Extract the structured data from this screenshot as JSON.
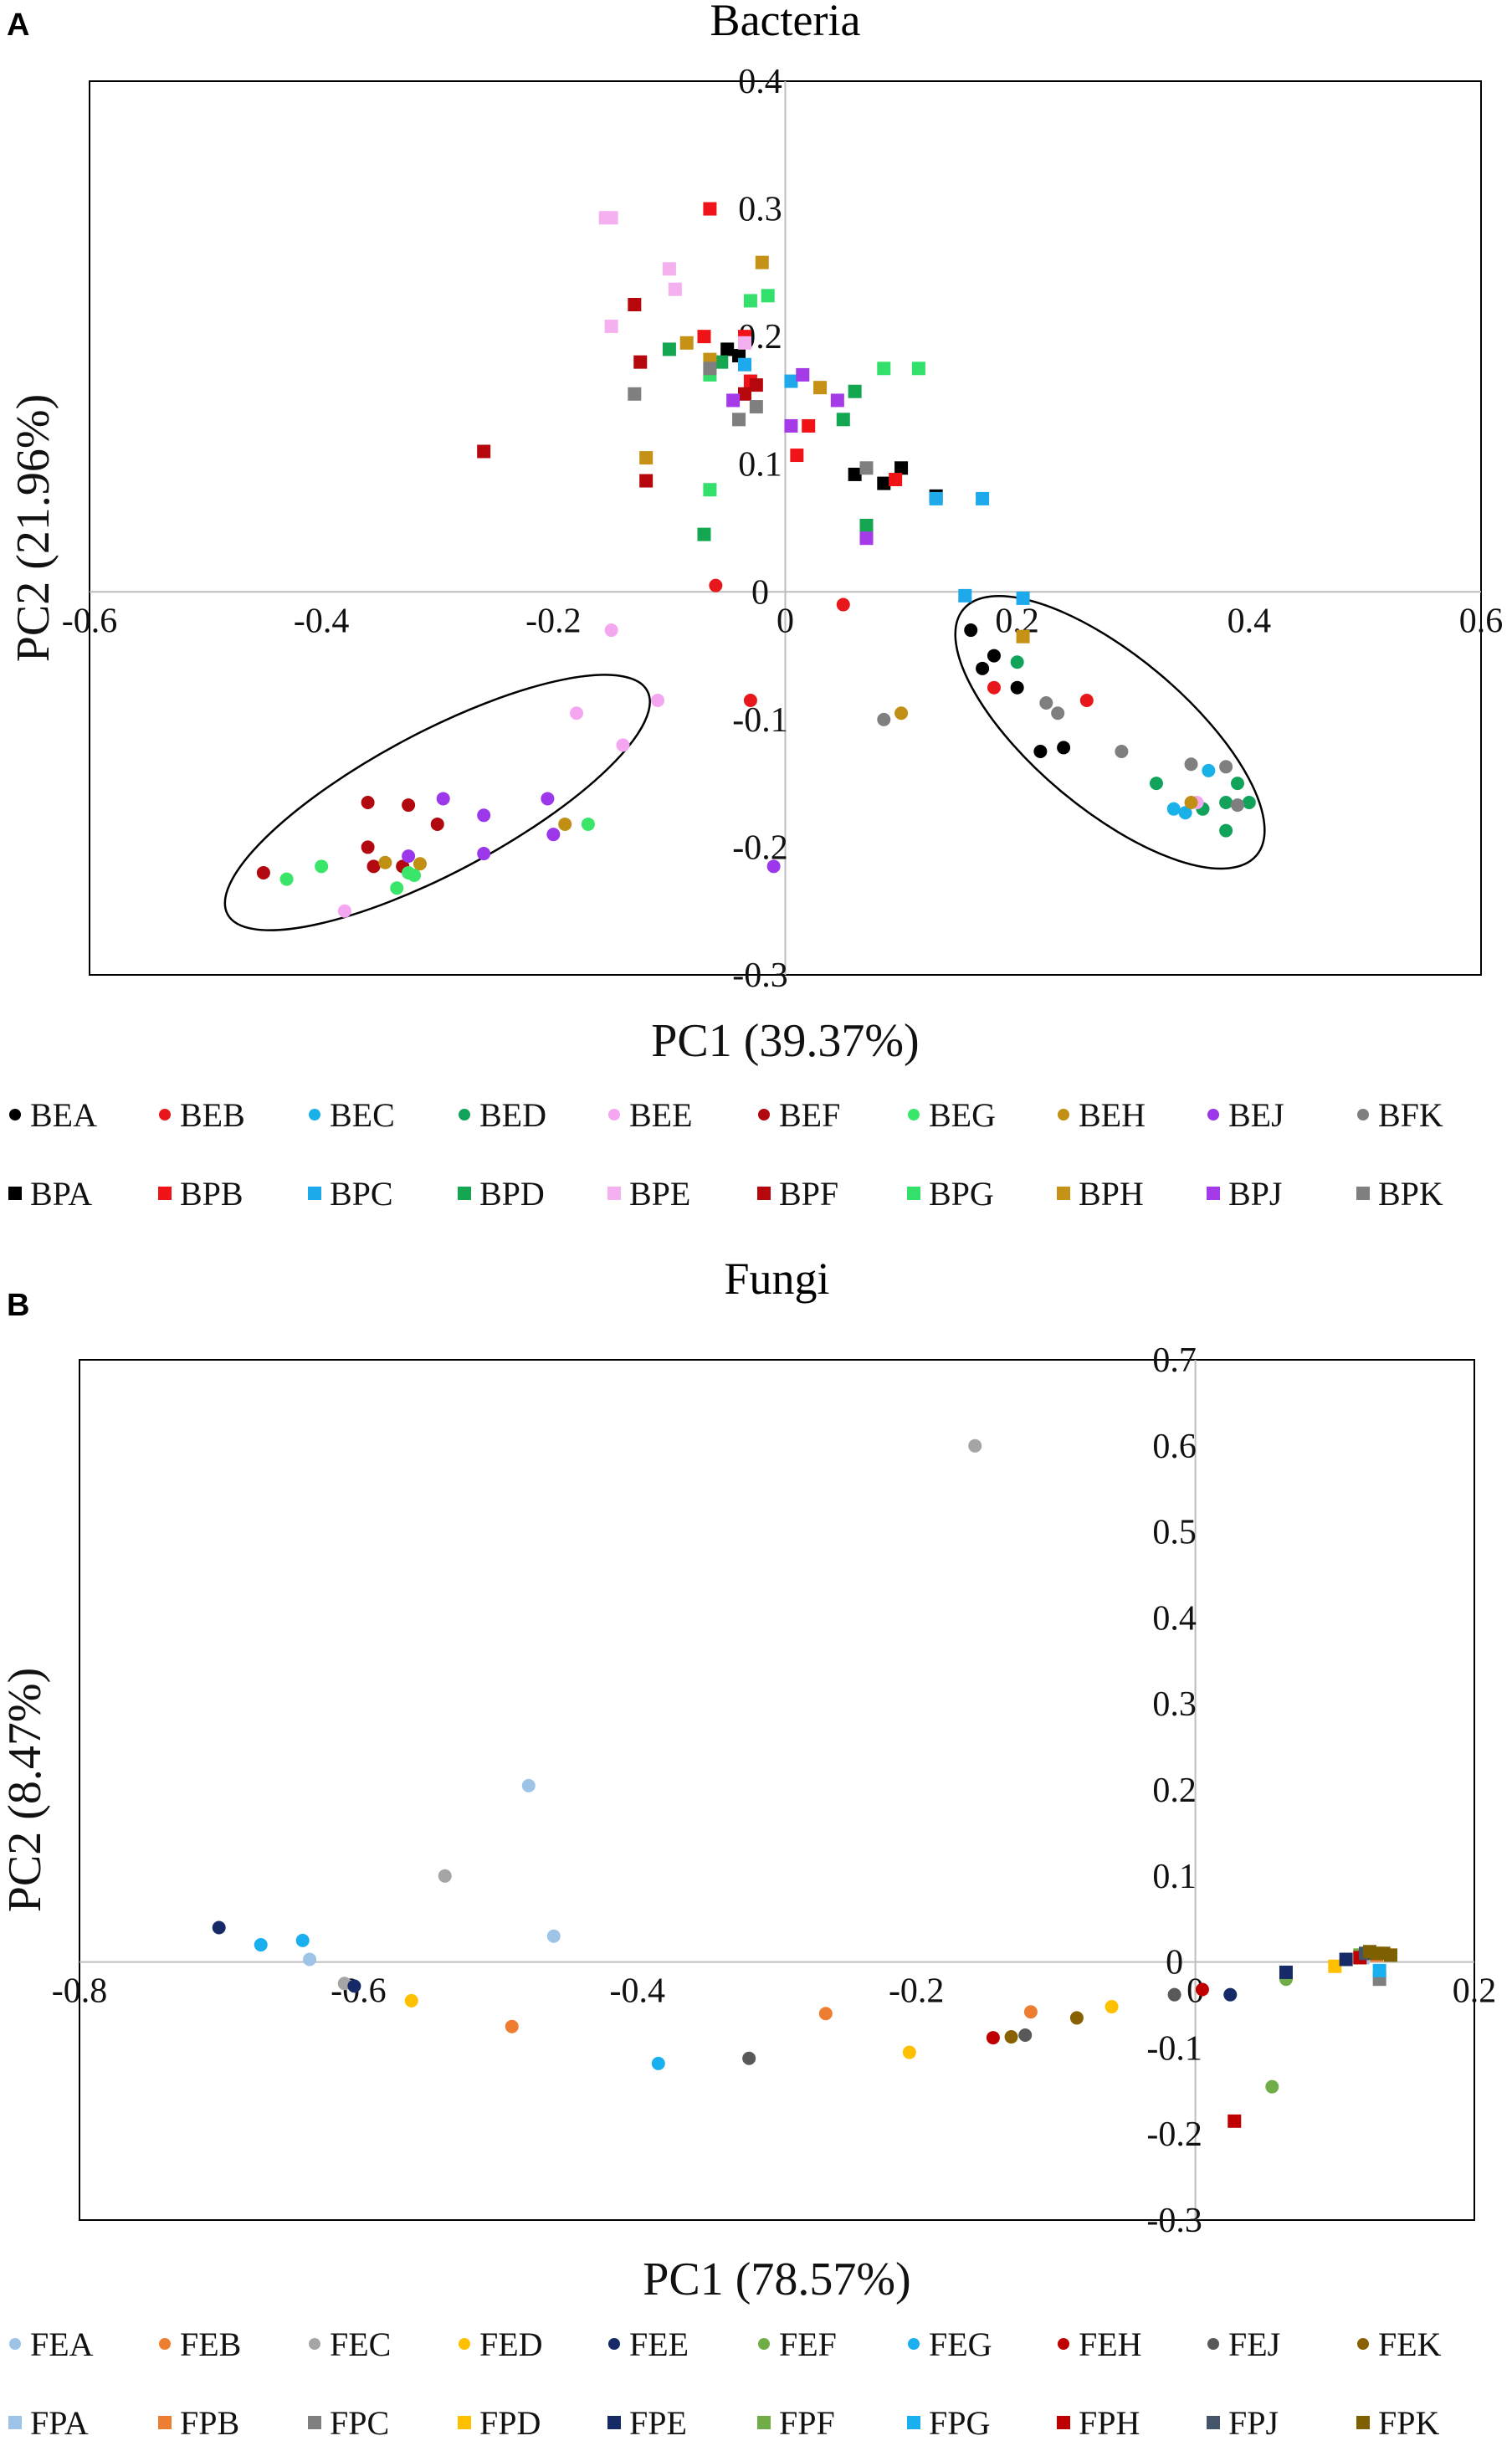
{
  "figure": {
    "panels": [
      "A",
      "B"
    ]
  },
  "chart_data": [
    {
      "id": "A",
      "type": "scatter",
      "title": "Bacteria",
      "xlabel": "PC1 (39.37%)",
      "ylabel": "PC2 (21.96%)",
      "xlim": [
        -0.6,
        0.6
      ],
      "ylim": [
        -0.3,
        0.4
      ],
      "xticks": [
        -0.6,
        -0.4,
        -0.2,
        0,
        0.2,
        0.4,
        0.6
      ],
      "yticks": [
        -0.3,
        -0.2,
        -0.1,
        0,
        0.1,
        0.2,
        0.3,
        0.4
      ],
      "tick_labels_x": [
        "-0.6",
        "-0.4",
        "-0.2",
        "0",
        "0.2",
        "0.4",
        "0.6"
      ],
      "tick_labels_y": [
        "-0.3",
        "-0.2",
        "-0.1",
        "0",
        "0.1",
        "0.2",
        "0.3",
        "0.4"
      ],
      "legend_position": "bottom",
      "ellipses": [
        {
          "cx": -0.3,
          "cy": -0.165,
          "rx": 0.205,
          "ry": 0.055,
          "angle_deg": -28
        },
        {
          "cx": 0.28,
          "cy": -0.11,
          "rx": 0.165,
          "ry": 0.06,
          "angle_deg": 40
        }
      ],
      "series": [
        {
          "name": "BEA",
          "marker": "circle",
          "color": "#000000",
          "points": [
            [
              0.16,
              -0.03
            ],
            [
              0.18,
              -0.05
            ],
            [
              0.17,
              -0.06
            ],
            [
              0.2,
              -0.075
            ],
            [
              0.22,
              -0.125
            ],
            [
              0.24,
              -0.122
            ]
          ]
        },
        {
          "name": "BEB",
          "marker": "circle",
          "color": "#e8171b",
          "points": [
            [
              0.18,
              -0.075
            ],
            [
              0.26,
              -0.085
            ],
            [
              -0.06,
              0.005
            ],
            [
              0.05,
              -0.01
            ],
            [
              -0.03,
              -0.085
            ]
          ]
        },
        {
          "name": "BEC",
          "marker": "circle",
          "color": "#1ab0e8",
          "points": [
            [
              0.365,
              -0.14
            ],
            [
              0.335,
              -0.17
            ],
            [
              0.345,
              -0.173
            ],
            [
              0.36,
              -0.17
            ]
          ]
        },
        {
          "name": "BED",
          "marker": "circle",
          "color": "#11a35a",
          "points": [
            [
              0.2,
              -0.055
            ],
            [
              0.32,
              -0.15
            ],
            [
              0.36,
              -0.17
            ],
            [
              0.38,
              -0.187
            ],
            [
              0.38,
              -0.165
            ],
            [
              0.39,
              -0.15
            ],
            [
              0.4,
              -0.165
            ]
          ]
        },
        {
          "name": "BEE",
          "marker": "circle",
          "color": "#f4a7f0",
          "points": [
            [
              -0.15,
              -0.03
            ],
            [
              -0.18,
              -0.095
            ],
            [
              -0.14,
              -0.12
            ],
            [
              -0.11,
              -0.085
            ],
            [
              -0.38,
              -0.25
            ],
            [
              0.355,
              -0.165
            ]
          ]
        },
        {
          "name": "BEF",
          "marker": "circle",
          "color": "#b2080f",
          "points": [
            [
              -0.45,
              -0.22
            ],
            [
              -0.36,
              -0.165
            ],
            [
              -0.36,
              -0.2
            ],
            [
              -0.355,
              -0.215
            ],
            [
              -0.325,
              -0.167
            ],
            [
              -0.3,
              -0.182
            ],
            [
              -0.33,
              -0.215
            ]
          ]
        },
        {
          "name": "BEG",
          "marker": "circle",
          "color": "#39e66a",
          "points": [
            [
              -0.43,
              -0.225
            ],
            [
              -0.4,
              -0.215
            ],
            [
              -0.335,
              -0.232
            ],
            [
              -0.325,
              -0.22
            ],
            [
              -0.32,
              -0.222
            ],
            [
              -0.17,
              -0.182
            ]
          ]
        },
        {
          "name": "BEH",
          "marker": "circle",
          "color": "#c08f13",
          "points": [
            [
              -0.345,
              -0.212
            ],
            [
              -0.315,
              -0.213
            ],
            [
              -0.19,
              -0.182
            ],
            [
              0.1,
              -0.095
            ],
            [
              0.35,
              -0.165
            ]
          ]
        },
        {
          "name": "BEJ",
          "marker": "circle",
          "color": "#9c37ea",
          "points": [
            [
              -0.295,
              -0.162
            ],
            [
              -0.26,
              -0.175
            ],
            [
              -0.26,
              -0.205
            ],
            [
              -0.325,
              -0.207
            ],
            [
              -0.205,
              -0.162
            ],
            [
              -0.2,
              -0.19
            ],
            [
              -0.01,
              -0.215
            ]
          ]
        },
        {
          "name": "BFK",
          "marker": "circle",
          "color": "#7f7f7f",
          "points": [
            [
              0.085,
              -0.1
            ],
            [
              0.225,
              -0.087
            ],
            [
              0.235,
              -0.095
            ],
            [
              0.29,
              -0.125
            ],
            [
              0.35,
              -0.135
            ],
            [
              0.38,
              -0.137
            ],
            [
              0.39,
              -0.167
            ]
          ]
        },
        {
          "name": "BPA",
          "marker": "square",
          "color": "#000000",
          "points": [
            [
              -0.05,
              0.19
            ],
            [
              -0.04,
              0.185
            ],
            [
              0.06,
              0.092
            ],
            [
              0.085,
              0.085
            ],
            [
              0.1,
              0.097
            ],
            [
              0.13,
              0.075
            ]
          ]
        },
        {
          "name": "BPB",
          "marker": "square",
          "color": "#f01418",
          "points": [
            [
              -0.065,
              0.3
            ],
            [
              -0.07,
              0.2
            ],
            [
              -0.035,
              0.2
            ],
            [
              -0.03,
              0.165
            ],
            [
              0.02,
              0.13
            ],
            [
              0.01,
              0.107
            ],
            [
              0.095,
              0.088
            ]
          ]
        },
        {
          "name": "BPC",
          "marker": "square",
          "color": "#1da9ec",
          "points": [
            [
              -0.035,
              0.178
            ],
            [
              0.005,
              0.165
            ],
            [
              0.13,
              0.073
            ],
            [
              0.17,
              0.073
            ],
            [
              0.155,
              -0.003
            ],
            [
              0.205,
              -0.005
            ]
          ]
        },
        {
          "name": "BPD",
          "marker": "square",
          "color": "#14a650",
          "points": [
            [
              -0.1,
              0.19
            ],
            [
              -0.07,
              0.045
            ],
            [
              -0.055,
              0.18
            ],
            [
              0.05,
              0.135
            ],
            [
              0.06,
              0.157
            ],
            [
              0.07,
              0.052
            ]
          ]
        },
        {
          "name": "BPE",
          "marker": "square",
          "color": "#f5b0f0",
          "points": [
            [
              -0.155,
              0.293
            ],
            [
              -0.15,
              0.293
            ],
            [
              -0.1,
              0.253
            ],
            [
              -0.095,
              0.237
            ],
            [
              -0.15,
              0.208
            ],
            [
              -0.035,
              0.195
            ]
          ]
        },
        {
          "name": "BPF",
          "marker": "square",
          "color": "#b5070c",
          "points": [
            [
              -0.26,
              0.11
            ],
            [
              -0.13,
              0.225
            ],
            [
              -0.125,
              0.18
            ],
            [
              -0.12,
              0.087
            ],
            [
              -0.035,
              0.155
            ],
            [
              -0.025,
              0.162
            ]
          ]
        },
        {
          "name": "BPG",
          "marker": "square",
          "color": "#33e06c",
          "points": [
            [
              -0.065,
              0.08
            ],
            [
              -0.03,
              0.228
            ],
            [
              -0.015,
              0.232
            ],
            [
              -0.065,
              0.17
            ],
            [
              0.085,
              0.175
            ],
            [
              0.115,
              0.175
            ]
          ]
        },
        {
          "name": "BPH",
          "marker": "square",
          "color": "#c59216",
          "points": [
            [
              -0.12,
              0.105
            ],
            [
              -0.085,
              0.195
            ],
            [
              -0.065,
              0.182
            ],
            [
              -0.02,
              0.258
            ],
            [
              0.03,
              0.16
            ],
            [
              0.205,
              -0.035
            ]
          ]
        },
        {
          "name": "BPJ",
          "marker": "square",
          "color": "#a43ae8",
          "points": [
            [
              -0.045,
              0.15
            ],
            [
              0.005,
              0.13
            ],
            [
              0.015,
              0.17
            ],
            [
              0.045,
              0.15
            ],
            [
              0.07,
              0.042
            ]
          ]
        },
        {
          "name": "BPK",
          "marker": "square",
          "color": "#7f7f7f",
          "points": [
            [
              -0.13,
              0.155
            ],
            [
              -0.065,
              0.175
            ],
            [
              -0.04,
              0.135
            ],
            [
              -0.025,
              0.145
            ],
            [
              0.07,
              0.097
            ]
          ]
        }
      ]
    },
    {
      "id": "B",
      "type": "scatter",
      "title": "Fungi",
      "xlabel": "PC1 (78.57%)",
      "ylabel": "PC2 (8.47%)",
      "xlim": [
        -0.8,
        0.2
      ],
      "ylim": [
        -0.3,
        0.7
      ],
      "xticks": [
        -0.8,
        -0.6,
        -0.4,
        -0.2,
        0,
        0.2
      ],
      "yticks": [
        -0.3,
        -0.2,
        -0.1,
        0,
        0.1,
        0.2,
        0.3,
        0.4,
        0.5,
        0.6,
        0.7
      ],
      "tick_labels_x": [
        "-0.8",
        "-0.6",
        "-0.4",
        "-0.2",
        "0",
        "0.2"
      ],
      "tick_labels_y": [
        "-0.3",
        "-0.2",
        "-0.1",
        "0",
        "0.1",
        "0.2",
        "0.3",
        "0.4",
        "0.5",
        "0.6",
        "0.7"
      ],
      "legend_position": "bottom",
      "series": [
        {
          "name": "FEA",
          "marker": "circle",
          "color": "#9dc3e6",
          "points": [
            [
              -0.478,
              0.205
            ],
            [
              -0.46,
              0.03
            ],
            [
              -0.635,
              0.003
            ]
          ]
        },
        {
          "name": "FEB",
          "marker": "circle",
          "color": "#ed7d31",
          "points": [
            [
              -0.49,
              -0.075
            ],
            [
              -0.265,
              -0.06
            ],
            [
              -0.118,
              -0.058
            ]
          ]
        },
        {
          "name": "FEC",
          "marker": "circle",
          "color": "#a5a5a5",
          "points": [
            [
              -0.158,
              0.6
            ],
            [
              -0.538,
              0.1
            ],
            [
              -0.61,
              -0.025
            ]
          ]
        },
        {
          "name": "FED",
          "marker": "circle",
          "color": "#ffc000",
          "points": [
            [
              -0.562,
              -0.045
            ],
            [
              -0.205,
              -0.105
            ],
            [
              -0.06,
              -0.052
            ]
          ]
        },
        {
          "name": "FEE",
          "marker": "circle",
          "color": "#152a66",
          "points": [
            [
              -0.7,
              0.04
            ],
            [
              -0.603,
              -0.028
            ],
            [
              0.025,
              -0.038
            ]
          ]
        },
        {
          "name": "FEF",
          "marker": "circle",
          "color": "#70ad47",
          "points": [
            [
              0.055,
              -0.145
            ],
            [
              0.065,
              -0.02
            ]
          ]
        },
        {
          "name": "FEG",
          "marker": "circle",
          "color": "#1ab0ef",
          "points": [
            [
              -0.67,
              0.02
            ],
            [
              -0.64,
              0.025
            ],
            [
              -0.385,
              -0.118
            ]
          ]
        },
        {
          "name": "FEH",
          "marker": "circle",
          "color": "#c00000",
          "points": [
            [
              -0.145,
              -0.088
            ],
            [
              0.005,
              -0.032
            ]
          ]
        },
        {
          "name": "FEJ",
          "marker": "circle",
          "color": "#595959",
          "points": [
            [
              -0.32,
              -0.112
            ],
            [
              -0.122,
              -0.085
            ],
            [
              -0.015,
              -0.038
            ]
          ]
        },
        {
          "name": "FEK",
          "marker": "circle",
          "color": "#8a6100",
          "points": [
            [
              -0.132,
              -0.087
            ],
            [
              -0.085,
              -0.065
            ]
          ]
        },
        {
          "name": "FPA",
          "marker": "square",
          "color": "#9dc3e6",
          "points": [
            [
              0.12,
              0.005
            ]
          ]
        },
        {
          "name": "FPB",
          "marker": "square",
          "color": "#ed7d31",
          "points": [
            [
              0.13,
              0.008
            ]
          ]
        },
        {
          "name": "FPC",
          "marker": "square",
          "color": "#7f7f7f",
          "points": [
            [
              0.132,
              -0.02
            ]
          ]
        },
        {
          "name": "FPD",
          "marker": "square",
          "color": "#ffc000",
          "points": [
            [
              0.1,
              -0.005
            ]
          ]
        },
        {
          "name": "FPE",
          "marker": "square",
          "color": "#152a66",
          "points": [
            [
              0.065,
              -0.012
            ],
            [
              0.108,
              0.003
            ]
          ]
        },
        {
          "name": "FPF",
          "marker": "square",
          "color": "#70ad47",
          "points": [
            [
              0.118,
              0.008
            ]
          ]
        },
        {
          "name": "FPG",
          "marker": "square",
          "color": "#1ab0ef",
          "points": [
            [
              0.132,
              -0.01
            ]
          ]
        },
        {
          "name": "FPH",
          "marker": "square",
          "color": "#c00000",
          "points": [
            [
              0.028,
              -0.185
            ],
            [
              0.118,
              0.005
            ]
          ]
        },
        {
          "name": "FPJ",
          "marker": "square",
          "color": "#44546a",
          "points": [
            [
              0.122,
              0.01
            ]
          ]
        },
        {
          "name": "FPK",
          "marker": "square",
          "color": "#7f6000",
          "points": [
            [
              0.125,
              0.012
            ],
            [
              0.13,
              0.01
            ],
            [
              0.135,
              0.01
            ],
            [
              0.14,
              0.008
            ]
          ]
        }
      ]
    }
  ]
}
